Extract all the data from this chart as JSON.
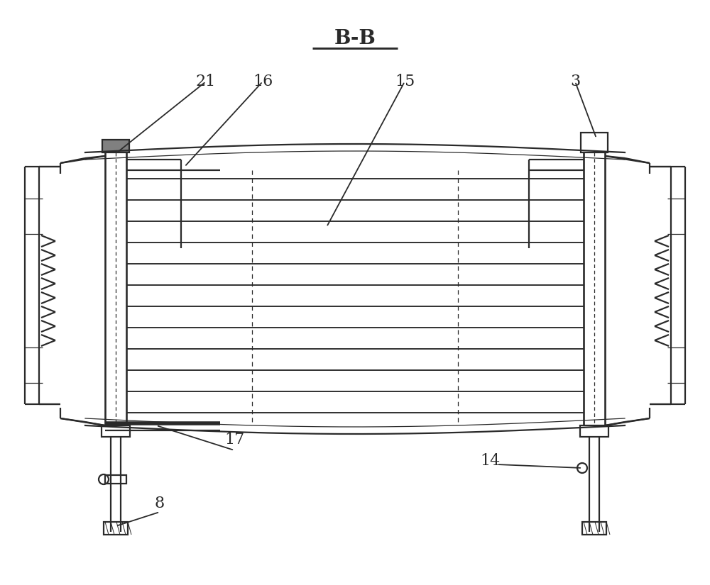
{
  "title": "B-B",
  "background_color": "#ffffff",
  "line_color": "#2a2a2a",
  "lw": 1.6,
  "tlw": 0.9,
  "label_fontsize": 16,
  "title_fontsize": 20
}
